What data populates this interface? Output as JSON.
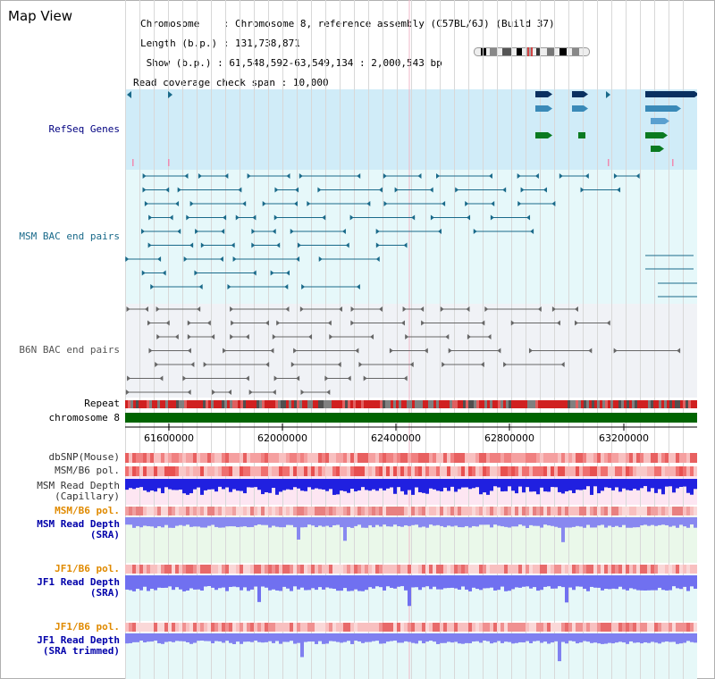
{
  "title": "Map View",
  "info": [
    {
      "key": "Chromosome   ",
      "value": "Chromosome 8, reference assembly (C57BL/6J) (Build 37)"
    },
    {
      "key": "Length (b.p.)",
      "value": "131,738,871"
    },
    {
      "key": " Show (b.p.)",
      "value": "61,548,592-63,549,134 : 2,000,543 bp"
    },
    {
      "key": "Read coverage check span",
      "value": "10,000"
    }
  ],
  "tracks": {
    "refseq": "RefSeq Genes",
    "msm_bac": "MSM BAC end pairs",
    "b6n_bac": "B6N BAC end pairs",
    "repeat": "Repeat",
    "chromosome": "chromosome 8",
    "dbsnp": "dbSNP(Mouse)",
    "msm_pol1": "MSM/B6 pol.",
    "msm_depth_cap": "MSM Read Depth\n(Capillary)",
    "msm_pol2": "MSM/B6 pol.",
    "msm_depth_sra": "MSM Read Depth\n(SRA)",
    "jf1_pol1": "JF1/B6 pol.",
    "jf1_depth_sra": "JF1 Read Depth\n(SRA)",
    "jf1_pol2": "JF1/B6 pol.",
    "jf1_depth_trim": "JF1 Read Depth\n(SRA trimmed)"
  },
  "axis_ticks": [
    "61600000",
    "62000000",
    "62400000",
    "62800000",
    "63200000"
  ],
  "colors": {
    "refseq_label": "#000080",
    "msm_label": "#1a6a8a",
    "b6n_label": "#555555",
    "pol_orange": "#e08a00",
    "depth_blue": "#0000aa",
    "chrom_green": "#006400"
  }
}
